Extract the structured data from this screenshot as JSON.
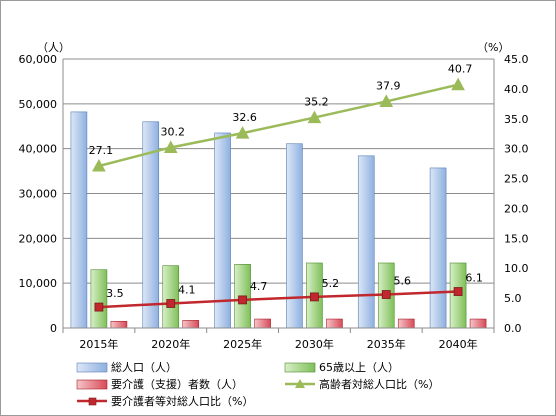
{
  "chart_data": {
    "type": "bar",
    "categories": [
      "2015年",
      "2020年",
      "2025年",
      "2030年",
      "2035年",
      "2040年"
    ],
    "y_left": {
      "unit": "（人）",
      "ylim": [
        0,
        60000
      ],
      "ticks": [
        "0",
        "10,000",
        "20,000",
        "30,000",
        "40,000",
        "50,000",
        "60,000"
      ]
    },
    "y_right": {
      "unit": "（%）",
      "ylim": [
        0,
        45
      ],
      "ticks": [
        "0.0",
        "5.0",
        "10.0",
        "15.0",
        "20.0",
        "25.0",
        "30.0",
        "35.0",
        "40.0",
        "45.0"
      ]
    },
    "grid": true,
    "legend_position": "bottom",
    "series": [
      {
        "name": "総人口（人）",
        "type": "bar",
        "axis": "left",
        "color": "#9dbbe6",
        "values": [
          48200,
          46000,
          43500,
          41100,
          38400,
          35700
        ]
      },
      {
        "name": "65歳以上（人）",
        "type": "bar",
        "axis": "left",
        "color": "#8fcb6a",
        "values": [
          13000,
          13900,
          14200,
          14500,
          14500,
          14500
        ]
      },
      {
        "name": "要介護（支援）者数（人）",
        "type": "bar",
        "axis": "left",
        "color": "#e0606e",
        "values": [
          1500,
          1700,
          2000,
          2000,
          2000,
          2000
        ]
      },
      {
        "name": "高齢者対総人口比（%）",
        "type": "line",
        "axis": "right",
        "color": "#9bbb59",
        "marker": "triangle",
        "values": [
          27.1,
          30.2,
          32.6,
          35.2,
          37.9,
          40.7
        ],
        "labels": [
          "27.1",
          "30.2",
          "32.6",
          "35.2",
          "37.9",
          "40.7"
        ]
      },
      {
        "name": "要介護者等対総人口比（%）",
        "type": "line",
        "axis": "right",
        "color": "#c0282d",
        "marker": "square",
        "values": [
          3.5,
          4.1,
          4.7,
          5.2,
          5.6,
          6.1
        ],
        "labels": [
          "3.5",
          "4.1",
          "4.7",
          "5.2",
          "5.6",
          "6.1"
        ]
      }
    ]
  }
}
